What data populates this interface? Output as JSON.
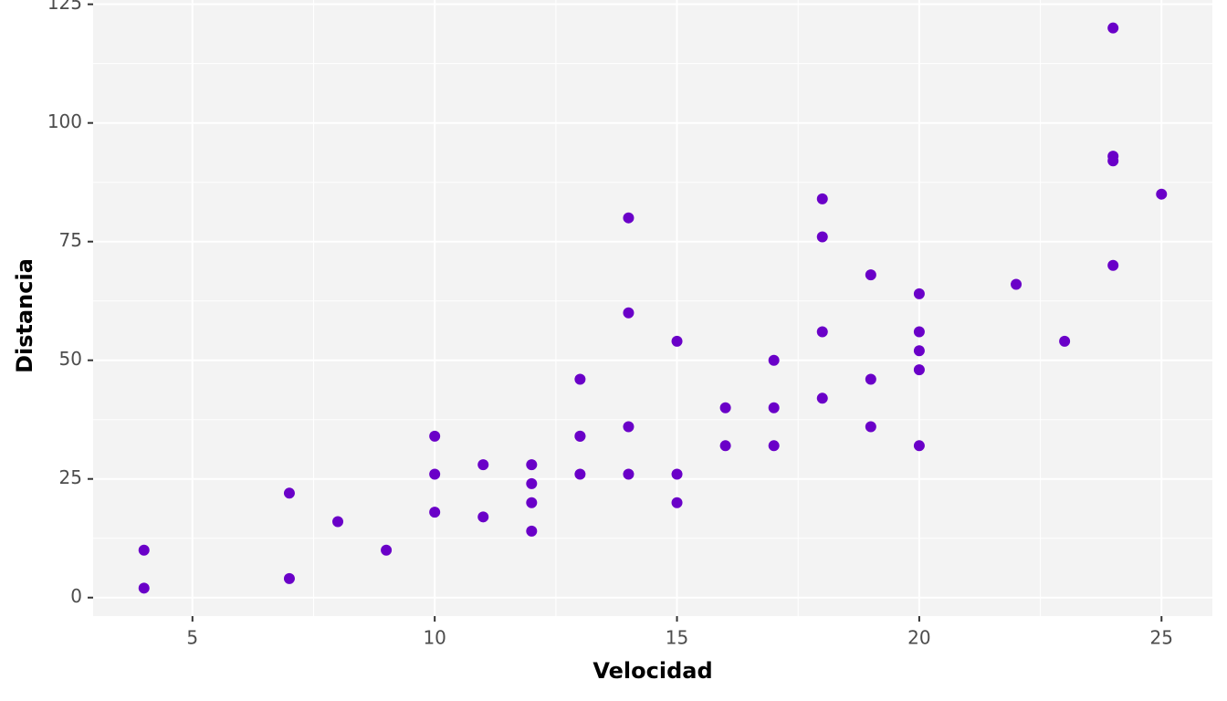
{
  "chart_data": {
    "type": "scatter",
    "x_label": "Velocidad",
    "y_label": "Distancia",
    "color": "#6a00c8",
    "grid": true,
    "x": [
      4,
      4,
      7,
      7,
      8,
      9,
      10,
      10,
      10,
      11,
      11,
      12,
      12,
      12,
      12,
      13,
      13,
      13,
      13,
      14,
      14,
      14,
      14,
      15,
      15,
      15,
      16,
      16,
      17,
      17,
      17,
      18,
      18,
      18,
      18,
      19,
      19,
      19,
      20,
      20,
      20,
      20,
      20,
      22,
      23,
      24,
      24,
      24,
      24,
      25
    ],
    "values": [
      2,
      10,
      4,
      22,
      16,
      10,
      18,
      26,
      34,
      17,
      28,
      14,
      20,
      24,
      28,
      26,
      34,
      34,
      46,
      26,
      36,
      60,
      80,
      20,
      26,
      54,
      32,
      40,
      32,
      40,
      50,
      42,
      56,
      76,
      84,
      36,
      46,
      68,
      32,
      48,
      52,
      56,
      64,
      66,
      54,
      70,
      92,
      93,
      120,
      85
    ],
    "xlim": [
      2.95,
      26.05
    ],
    "xticks": [
      5,
      10,
      15,
      20,
      25
    ],
    "ylim": [
      -3.9,
      125.9
    ],
    "yticks": [
      0,
      25,
      50,
      75,
      100,
      125
    ]
  }
}
